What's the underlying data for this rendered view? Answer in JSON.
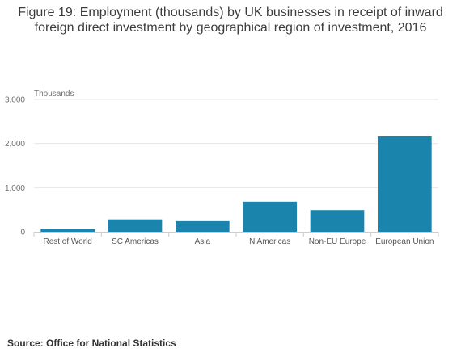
{
  "chart_data": {
    "type": "bar",
    "title_lines": [
      "Figure 19: Employment (thousands) by UK businesses in receipt of inward",
      "foreign direct investment by geographical region of investment, 2016"
    ],
    "ylabel": "Thousands",
    "xlabel": "",
    "categories": [
      "Rest of World",
      "SC Americas",
      "Asia",
      "N Americas",
      "Non-EU Europe",
      "European Union"
    ],
    "values": [
      60,
      280,
      240,
      680,
      490,
      2160
    ],
    "ylim": [
      0,
      3000
    ],
    "yticks": [
      0,
      1000,
      2000,
      3000
    ],
    "ytick_labels": [
      "0",
      "1,000",
      "2,000",
      "3,000"
    ],
    "grid": true,
    "bar_color": "#1b84ac",
    "grid_color": "#e6e6e6",
    "axis_color": "#cccccc"
  },
  "footer": {
    "source": "Source: Office for National Statistics"
  }
}
